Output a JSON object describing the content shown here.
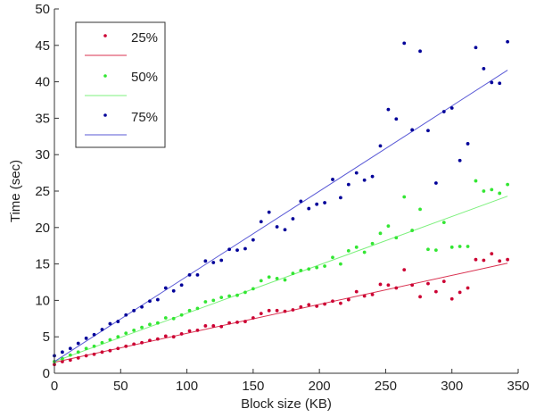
{
  "chart_data": {
    "type": "scatter",
    "title": "",
    "xlabel": "Block size (KB)",
    "ylabel": "Time (sec)",
    "xlim": [
      0,
      350
    ],
    "ylim": [
      0,
      50
    ],
    "xticks": [
      0,
      50,
      100,
      150,
      200,
      250,
      300,
      350
    ],
    "yticks": [
      0,
      5,
      10,
      15,
      20,
      25,
      30,
      35,
      40,
      45,
      50
    ],
    "grid": false,
    "legend_position": "upper left",
    "x": [
      0,
      6,
      12,
      18,
      24,
      30,
      36,
      42,
      48,
      54,
      60,
      66,
      72,
      78,
      84,
      90,
      96,
      102,
      108,
      114,
      120,
      126,
      132,
      138,
      144,
      150,
      156,
      162,
      168,
      174,
      180,
      186,
      192,
      198,
      204,
      210,
      216,
      222,
      228,
      234,
      240,
      246,
      252,
      258,
      264,
      270,
      276,
      282,
      288,
      294,
      300,
      306,
      312,
      318,
      324,
      330,
      336,
      342
    ],
    "series": [
      {
        "name": "25%",
        "color": "#cc0033",
        "marker": "dot",
        "fit_line": {
          "x": [
            0,
            342
          ],
          "y": [
            1.5,
            15.1
          ],
          "color": "#d9304f"
        },
        "values": [
          1.2,
          1.6,
          1.8,
          2.1,
          2.4,
          2.6,
          2.9,
          3.1,
          3.4,
          3.7,
          4.0,
          4.2,
          4.5,
          4.7,
          5.1,
          5.0,
          5.4,
          5.8,
          5.9,
          6.5,
          6.5,
          6.4,
          6.9,
          7.0,
          7.1,
          7.6,
          8.2,
          8.6,
          8.6,
          8.5,
          8.7,
          9.1,
          9.4,
          9.2,
          9.5,
          9.9,
          9.6,
          10.1,
          11.2,
          10.6,
          10.8,
          12.2,
          12.1,
          11.7,
          14.2,
          12.1,
          10.5,
          12.3,
          11.2,
          12.6,
          10.2,
          11.1,
          11.7,
          15.6,
          15.5,
          16.4,
          15.4,
          15.6
        ]
      },
      {
        "name": "50%",
        "color": "#33e633",
        "marker": "dot",
        "fit_line": {
          "x": [
            0,
            342
          ],
          "y": [
            1.6,
            24.3
          ],
          "color": "#7cf07c"
        },
        "values": [
          1.6,
          2.0,
          2.5,
          2.9,
          3.4,
          3.7,
          4.2,
          4.6,
          5.0,
          5.5,
          5.9,
          6.3,
          6.7,
          6.9,
          7.6,
          7.5,
          8.0,
          8.6,
          8.9,
          9.8,
          10.0,
          10.4,
          10.6,
          10.7,
          11.1,
          11.6,
          12.7,
          13.2,
          13.0,
          12.8,
          13.7,
          14.1,
          14.3,
          14.5,
          14.7,
          15.9,
          15.0,
          16.8,
          17.3,
          16.6,
          17.8,
          19.2,
          20.2,
          18.6,
          24.2,
          19.6,
          22.5,
          17.0,
          16.9,
          20.7,
          17.3,
          17.4,
          17.4,
          26.4,
          25.0,
          25.2,
          24.7,
          25.9
        ]
      },
      {
        "name": "75%",
        "color": "#000099",
        "marker": "dot",
        "fit_line": {
          "x": [
            0,
            342
          ],
          "y": [
            1.6,
            41.6
          ],
          "color": "#5a5ad6"
        },
        "values": [
          2.4,
          2.9,
          3.4,
          4.1,
          4.8,
          5.3,
          6.0,
          6.8,
          7.1,
          8.0,
          8.6,
          9.1,
          9.9,
          10.1,
          11.7,
          11.3,
          12.1,
          13.5,
          13.5,
          15.4,
          15.2,
          15.5,
          17.0,
          16.9,
          17.1,
          18.3,
          20.8,
          22.1,
          20.1,
          19.7,
          21.2,
          23.6,
          22.6,
          23.2,
          23.4,
          26.6,
          24.1,
          25.9,
          27.5,
          26.5,
          27.0,
          31.2,
          36.2,
          34.9,
          45.3,
          33.4,
          44.2,
          33.3,
          26.1,
          35.9,
          36.4,
          29.2,
          31.5,
          44.7,
          41.8,
          39.9,
          39.8,
          45.5
        ]
      }
    ]
  },
  "axes": {
    "xlabel": "Block size (KB)",
    "ylabel": "Time (sec)"
  },
  "legend": {
    "items": [
      {
        "label": "25%",
        "color": "#cc0033",
        "line_color": "#d9304f"
      },
      {
        "label": "50%",
        "color": "#33e633",
        "line_color": "#7cf07c"
      },
      {
        "label": "75%",
        "color": "#000099",
        "line_color": "#5a5ad6"
      }
    ]
  }
}
